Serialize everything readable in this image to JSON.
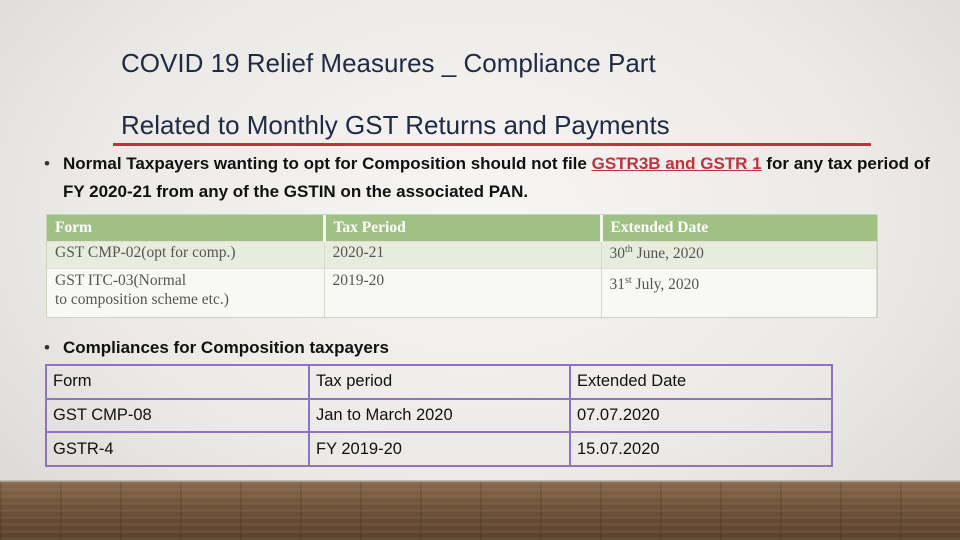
{
  "title": {
    "line1": "COVID 19 Relief Measures _ Compliance Part",
    "line2": "Related to Monthly GST Returns and Payments"
  },
  "bullet1": {
    "before": "Normal Taxpayers wanting to opt for Composition should not file ",
    "highlight": "GSTR3B and GSTR 1",
    "after": " for any tax period of FY 2020-21 from any of the GSTIN on the associated PAN."
  },
  "table1": {
    "headers": [
      "Form",
      "Tax Period",
      "Extended Date"
    ],
    "rows": [
      {
        "form": "GST CMP-02(opt for comp.)",
        "period": "2020-21",
        "date_day": "30",
        "date_sup": "th",
        "date_rest": " June, 2020"
      },
      {
        "form_line1": "GST ITC-03(Normal",
        "form_line2": "to composition scheme etc.)",
        "period": "2019-20",
        "date_day": "31",
        "date_sup": "st",
        "date_rest": " July, 2020"
      }
    ]
  },
  "bullet2": {
    "text": "Compliances for Composition taxpayers"
  },
  "table2": {
    "headers": [
      "Form",
      "Tax period",
      "Extended Date"
    ],
    "rows": [
      [
        "GST CMP-08",
        "Jan to March 2020",
        "07.07.2020"
      ],
      [
        "GSTR-4",
        "FY 2019-20",
        "15.07.2020"
      ]
    ]
  },
  "bullet_symbol": "•",
  "colors": {
    "accent": "#c0323c",
    "table1_header": "#a0c184",
    "table2_border": "#8e72c4"
  }
}
